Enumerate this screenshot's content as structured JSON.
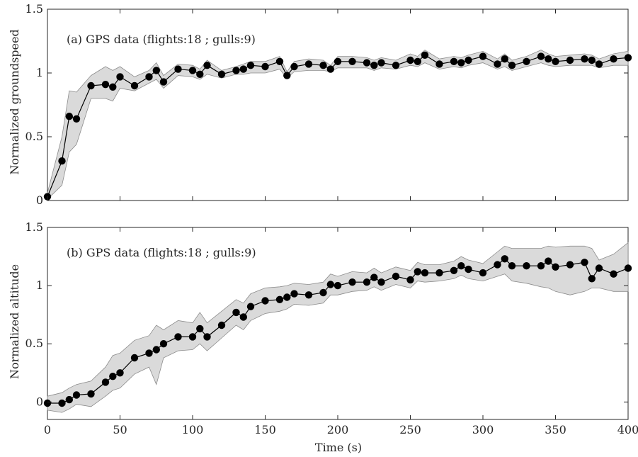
{
  "chart_data": [
    {
      "type": "line",
      "annotation": "(a) GPS data (flights:18 ; gulls:9)",
      "ylabel": "Normalized groundspeed",
      "xlabel": "",
      "xlim": [
        0,
        400
      ],
      "ylim": [
        0,
        1.5
      ],
      "xticks": [
        0,
        50,
        100,
        150,
        200,
        250,
        300,
        350,
        400
      ],
      "yticks": [
        0,
        0.5,
        1,
        1.5
      ],
      "xtick_labels_shown": false,
      "series": [
        {
          "x": [
            0,
            10,
            15,
            20,
            30,
            40,
            45,
            50,
            60,
            70,
            75,
            80,
            90,
            100,
            105,
            110,
            120,
            130,
            135,
            140,
            150,
            160,
            165,
            170,
            180,
            190,
            195,
            200,
            210,
            220,
            225,
            230,
            240,
            250,
            255,
            260,
            270,
            280,
            285,
            290,
            300,
            310,
            315,
            320,
            330,
            340,
            345,
            350,
            360,
            370,
            375,
            380,
            390,
            400
          ],
          "y": [
            0.03,
            0.31,
            0.66,
            0.64,
            0.9,
            0.91,
            0.89,
            0.97,
            0.9,
            0.97,
            1.02,
            0.93,
            1.03,
            1.02,
            0.99,
            1.06,
            0.99,
            1.02,
            1.03,
            1.06,
            1.05,
            1.09,
            0.98,
            1.05,
            1.07,
            1.06,
            1.03,
            1.09,
            1.09,
            1.08,
            1.06,
            1.08,
            1.06,
            1.1,
            1.09,
            1.14,
            1.07,
            1.09,
            1.08,
            1.1,
            1.13,
            1.07,
            1.11,
            1.06,
            1.09,
            1.13,
            1.11,
            1.09,
            1.1,
            1.11,
            1.1,
            1.07,
            1.11,
            1.12
          ],
          "lower": [
            0.01,
            0.12,
            0.38,
            0.44,
            0.8,
            0.8,
            0.78,
            0.88,
            0.86,
            0.92,
            0.95,
            0.88,
            0.98,
            0.97,
            0.95,
            0.99,
            0.96,
            0.99,
            0.99,
            1.0,
            1.0,
            1.03,
            0.96,
            1.01,
            1.02,
            1.02,
            1.01,
            1.04,
            1.04,
            1.04,
            1.02,
            1.04,
            1.03,
            1.06,
            1.05,
            1.08,
            1.03,
            1.05,
            1.04,
            1.06,
            1.08,
            1.03,
            1.05,
            1.02,
            1.05,
            1.08,
            1.06,
            1.05,
            1.06,
            1.06,
            1.06,
            1.04,
            1.06,
            1.06
          ],
          "upper": [
            0.06,
            0.5,
            0.86,
            0.85,
            0.98,
            1.05,
            1.02,
            1.05,
            0.97,
            1.02,
            1.08,
            0.98,
            1.07,
            1.06,
            1.03,
            1.1,
            1.02,
            1.05,
            1.07,
            1.09,
            1.09,
            1.13,
            1.01,
            1.09,
            1.11,
            1.1,
            1.06,
            1.13,
            1.13,
            1.12,
            1.1,
            1.12,
            1.1,
            1.15,
            1.13,
            1.18,
            1.11,
            1.13,
            1.12,
            1.14,
            1.17,
            1.11,
            1.15,
            1.1,
            1.13,
            1.18,
            1.15,
            1.13,
            1.14,
            1.15,
            1.14,
            1.11,
            1.15,
            1.17
          ]
        }
      ]
    },
    {
      "type": "line",
      "annotation": "(b) GPS data (flights:18 ; gulls:9)",
      "ylabel": "Normalized altitude",
      "xlabel": "Time (s)",
      "xlim": [
        0,
        400
      ],
      "ylim": [
        -0.15,
        1.5
      ],
      "xticks": [
        0,
        50,
        100,
        150,
        200,
        250,
        300,
        350,
        400
      ],
      "yticks": [
        0,
        0.5,
        1,
        1.5
      ],
      "xtick_labels_shown": true,
      "series": [
        {
          "x": [
            0,
            10,
            15,
            20,
            30,
            40,
            45,
            50,
            60,
            70,
            75,
            80,
            90,
            100,
            105,
            110,
            120,
            130,
            135,
            140,
            150,
            160,
            165,
            170,
            180,
            190,
            195,
            200,
            210,
            220,
            225,
            230,
            240,
            250,
            255,
            260,
            270,
            280,
            285,
            290,
            300,
            310,
            315,
            320,
            330,
            340,
            345,
            350,
            360,
            370,
            375,
            380,
            390,
            400
          ],
          "y": [
            -0.01,
            -0.01,
            0.02,
            0.06,
            0.07,
            0.17,
            0.22,
            0.25,
            0.38,
            0.42,
            0.45,
            0.5,
            0.56,
            0.56,
            0.63,
            0.56,
            0.66,
            0.77,
            0.73,
            0.82,
            0.87,
            0.88,
            0.9,
            0.93,
            0.92,
            0.94,
            1.01,
            1.0,
            1.03,
            1.03,
            1.07,
            1.03,
            1.08,
            1.05,
            1.12,
            1.11,
            1.11,
            1.13,
            1.17,
            1.14,
            1.11,
            1.18,
            1.23,
            1.17,
            1.17,
            1.17,
            1.21,
            1.16,
            1.18,
            1.2,
            1.06,
            1.15,
            1.1,
            1.15
          ],
          "lower": [
            -0.07,
            -0.09,
            -0.06,
            -0.02,
            -0.04,
            0.05,
            0.1,
            0.12,
            0.24,
            0.3,
            0.15,
            0.38,
            0.44,
            0.45,
            0.5,
            0.44,
            0.55,
            0.66,
            0.62,
            0.7,
            0.76,
            0.78,
            0.8,
            0.84,
            0.83,
            0.85,
            0.92,
            0.92,
            0.95,
            0.96,
            0.99,
            0.96,
            1.01,
            0.98,
            1.04,
            1.03,
            1.04,
            1.06,
            1.09,
            1.06,
            1.04,
            1.08,
            1.1,
            1.04,
            1.02,
            0.99,
            0.98,
            0.95,
            0.92,
            0.95,
            0.98,
            0.98,
            0.95,
            0.95
          ],
          "upper": [
            0.05,
            0.08,
            0.12,
            0.15,
            0.18,
            0.3,
            0.4,
            0.42,
            0.53,
            0.57,
            0.66,
            0.62,
            0.7,
            0.68,
            0.77,
            0.68,
            0.78,
            0.88,
            0.85,
            0.93,
            0.98,
            0.99,
            1.0,
            1.02,
            1.01,
            1.03,
            1.1,
            1.08,
            1.12,
            1.11,
            1.15,
            1.11,
            1.16,
            1.13,
            1.2,
            1.18,
            1.18,
            1.21,
            1.25,
            1.22,
            1.19,
            1.29,
            1.34,
            1.32,
            1.32,
            1.32,
            1.34,
            1.33,
            1.34,
            1.34,
            1.32,
            1.22,
            1.27,
            1.37
          ]
        }
      ]
    }
  ]
}
